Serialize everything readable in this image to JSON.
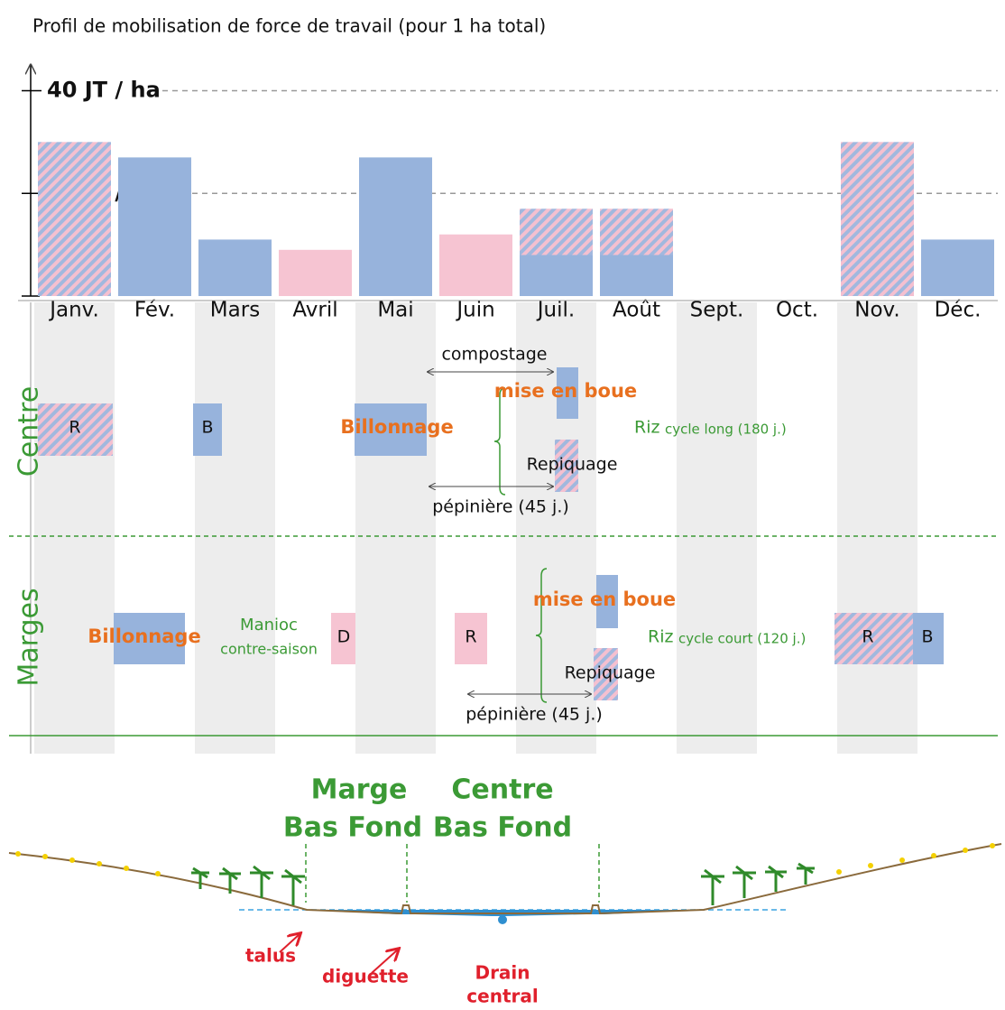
{
  "chart_data": {
    "type": "bar",
    "title": "Profil de mobilisation de force de travail (pour 1 ha total)",
    "categories": [
      "Janv.",
      "Fév.",
      "Mars",
      "Avril",
      "Mai",
      "Juin",
      "Juil.",
      "Août",
      "Sept.",
      "Oct.",
      "Nov.",
      "Déc."
    ],
    "series": [
      {
        "color": "#97b3dc",
        "values": [
          null,
          27,
          11,
          null,
          27,
          null,
          8,
          8,
          null,
          null,
          null,
          11
        ]
      },
      {
        "color": "#f6c4d2",
        "values": [
          null,
          null,
          null,
          9,
          null,
          12,
          null,
          null,
          null,
          null,
          null,
          null
        ]
      },
      {
        "pattern": "stripes",
        "colors": [
          "#f4c0d0",
          "#a1b8de"
        ],
        "values": [
          30,
          null,
          null,
          null,
          null,
          null,
          9,
          9,
          null,
          null,
          30,
          null
        ]
      }
    ],
    "stacked": true,
    "ylim": [
      0,
      45
    ],
    "yticks": [
      {
        "value": 20,
        "label": "20 JT / ha"
      },
      {
        "value": 40,
        "label": "40 JT / ha"
      }
    ],
    "grid": true
  },
  "diagram": {
    "centre": {
      "label": "Centre",
      "r": "R",
      "b": "B",
      "billonnage": "Billonnage",
      "compostage": "compostage",
      "mise_en_boue": "mise en boue",
      "repiquage": "Repiquage",
      "pepiniere": "pépinière (45 j.)",
      "riz": "Riz",
      "cycle": "cycle long (180 j.)"
    },
    "marges": {
      "label": "Marges",
      "billonnage": "Billonnage",
      "manioc": "Manioc",
      "contre_saison": "contre-saison",
      "d": "D",
      "r": "R",
      "mise_en_boue": "mise en boue",
      "repiquage": "Repiquage",
      "pepiniere": "pépinière (45 j.)",
      "riz": "Riz",
      "cycle": "cycle court (120 j.)",
      "r2": "R",
      "b2": "B"
    },
    "profile": {
      "marge_1": "Marge",
      "marge_2": "Bas Fond",
      "centre_1": "Centre",
      "centre_2": "Bas Fond",
      "talus": "talus",
      "diguette": "diguette",
      "drain_1": "Drain",
      "drain_2": "central"
    }
  }
}
